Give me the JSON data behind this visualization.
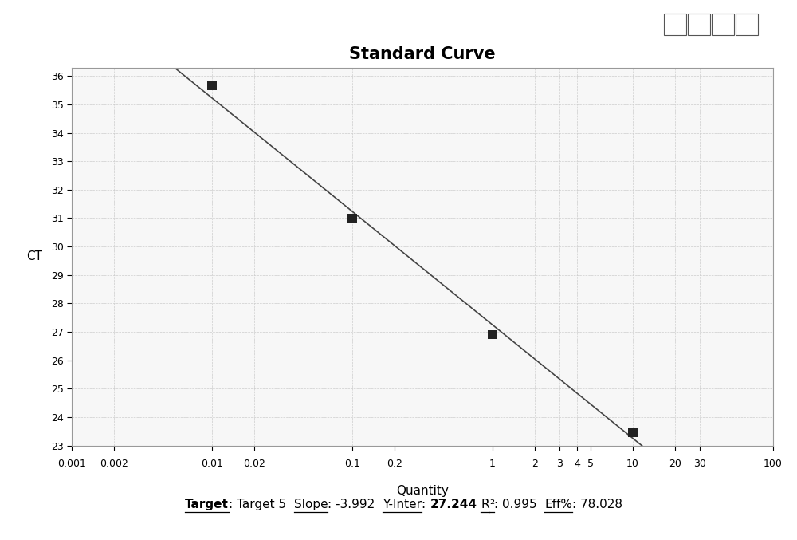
{
  "title": "Standard Curve",
  "xlabel": "Quantity",
  "ylabel": "CT",
  "x_data": [
    0.01,
    0.1,
    1,
    10
  ],
  "y_data": [
    35.65,
    31.0,
    26.9,
    23.45
  ],
  "slope": -3.992,
  "y_inter": 27.244,
  "r2": 0.995,
  "eff": 78.028,
  "x_ticks": [
    0.001,
    0.002,
    0.01,
    0.02,
    0.1,
    0.2,
    1,
    2,
    3,
    4,
    5,
    10,
    20,
    30,
    100
  ],
  "x_tick_labels": [
    "0.001",
    "0.002",
    "0.01",
    "0.02",
    "0.1",
    "0.2",
    "1",
    "2",
    "3",
    "4",
    "5",
    "10",
    "20",
    "30",
    "100"
  ],
  "ylim": [
    23,
    36.3
  ],
  "y_ticks": [
    23,
    24,
    25,
    26,
    27,
    28,
    29,
    30,
    31,
    32,
    33,
    34,
    35,
    36
  ],
  "marker_color": "#222222",
  "line_color": "#444444",
  "grid_color": "#cccccc",
  "bg_color": "#f7f7f7",
  "plot_bg": "#f0f0f0",
  "ann_bg": "#e8e8e8",
  "marker_size": 8,
  "line_width": 1.2,
  "title_fontsize": 15,
  "label_fontsize": 11,
  "tick_fontsize": 9,
  "annotation_fontsize": 11,
  "ann_text_bold": [
    "Target",
    "27.244"
  ],
  "ann_text_underline": [
    "Target",
    "Slope",
    "Y-Inter",
    "R²",
    "Eff%"
  ],
  "ann_segments": [
    [
      "Target",
      true,
      true
    ],
    [
      ": Target 5  ",
      false,
      false
    ],
    [
      "Slope",
      false,
      true
    ],
    [
      ": -3.992  ",
      false,
      false
    ],
    [
      "Y-Inter",
      false,
      true
    ],
    [
      ": ",
      false,
      false
    ],
    [
      "27.244",
      true,
      false
    ],
    [
      " ",
      false,
      false
    ],
    [
      "R",
      false,
      true
    ],
    [
      "²",
      false,
      true
    ],
    [
      ": 0.995  ",
      false,
      false
    ],
    [
      "Eff%",
      false,
      true
    ],
    [
      ": 78.028",
      false,
      false
    ]
  ]
}
